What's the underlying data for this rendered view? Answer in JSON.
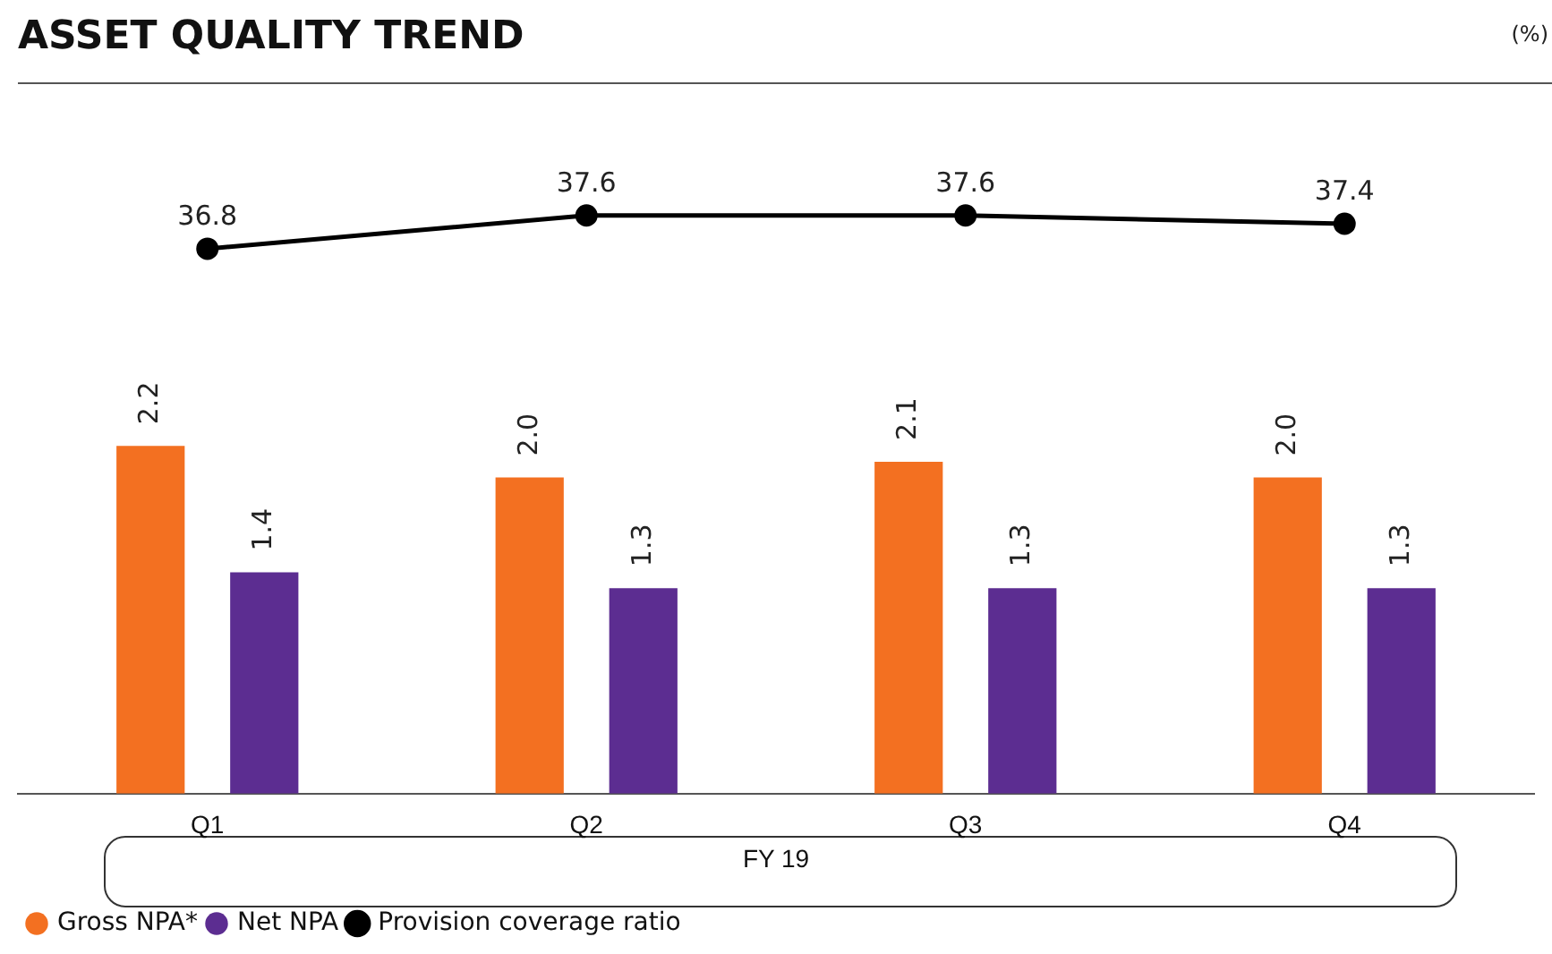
{
  "chart_data": {
    "type": "bar",
    "title": "ASSET QUALITY TREND",
    "xlabel": "FY 19",
    "annotations": [
      "(%)"
    ],
    "categories": [
      "Q1",
      "Q2",
      "Q3",
      "Q4"
    ],
    "series": [
      {
        "name": "Gross NPA*",
        "color": "#f37021",
        "values": [
          2.2,
          2.0,
          2.1,
          2.0
        ],
        "value_labels": [
          "2.2",
          "2.0",
          "2.1",
          "2.0"
        ]
      },
      {
        "name": "Net NPA",
        "color": "#5c2d91",
        "values": [
          1.4,
          1.3,
          1.3,
          1.3
        ],
        "value_labels": [
          "1.4",
          "1.3",
          "1.3",
          "1.3"
        ]
      },
      {
        "name": "Provision coverage ratio",
        "type": "line",
        "axis": "y2",
        "color": "#000000",
        "values": [
          36.8,
          37.6,
          37.6,
          37.4
        ],
        "value_labels": [
          "36.8",
          "37.6",
          "37.6",
          "37.4"
        ]
      }
    ],
    "ylim": [
      0,
      4.5
    ],
    "y2lim": [
      23.7,
      40.8
    ],
    "tick_labels": "x",
    "legend": "bottom left",
    "marker": "circle",
    "grid": false
  }
}
